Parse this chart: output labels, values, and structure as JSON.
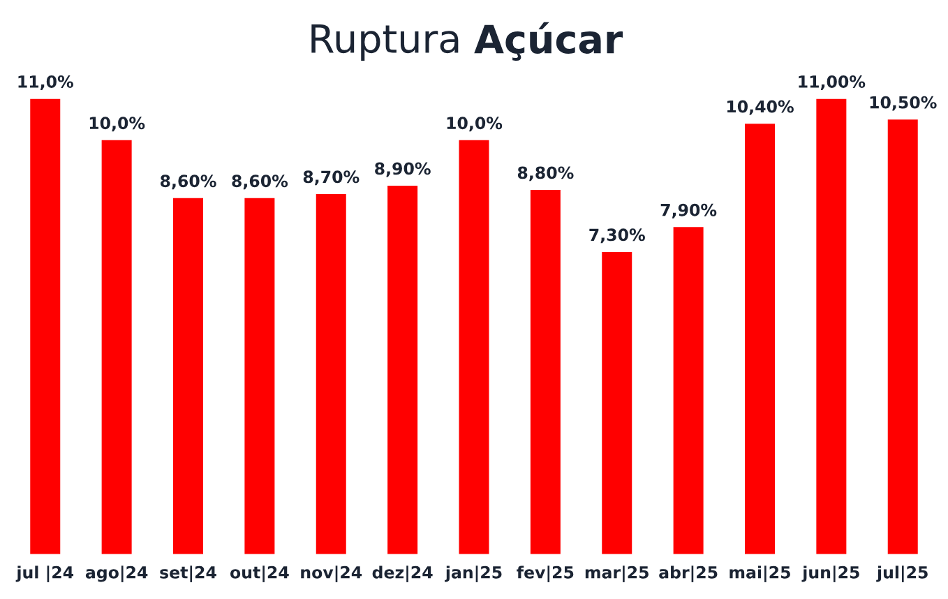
{
  "chart_data": {
    "type": "bar",
    "title": "Ruptura Açúcar",
    "categories": [
      "jul |24",
      "ago|24",
      "set|24",
      "out|24",
      "nov|24",
      "dez|24",
      "jan|25",
      "fev|25",
      "mar|25",
      "abr|25",
      "mai|25",
      "jun|25",
      "jul|25"
    ],
    "values": [
      11.0,
      10.0,
      8.6,
      8.6,
      8.7,
      8.9,
      10.0,
      8.8,
      7.3,
      7.9,
      10.4,
      11.0,
      10.5
    ],
    "value_labels": [
      "11,0%",
      "10,0%",
      "8,60%",
      "8,60%",
      "8,70%",
      "8,90%",
      "10,0%",
      "8,80%",
      "7,30%",
      "7,90%",
      "10,40%",
      "11,00%",
      "10,50%"
    ],
    "color": "#ff0000",
    "grid": false,
    "legend": false
  }
}
